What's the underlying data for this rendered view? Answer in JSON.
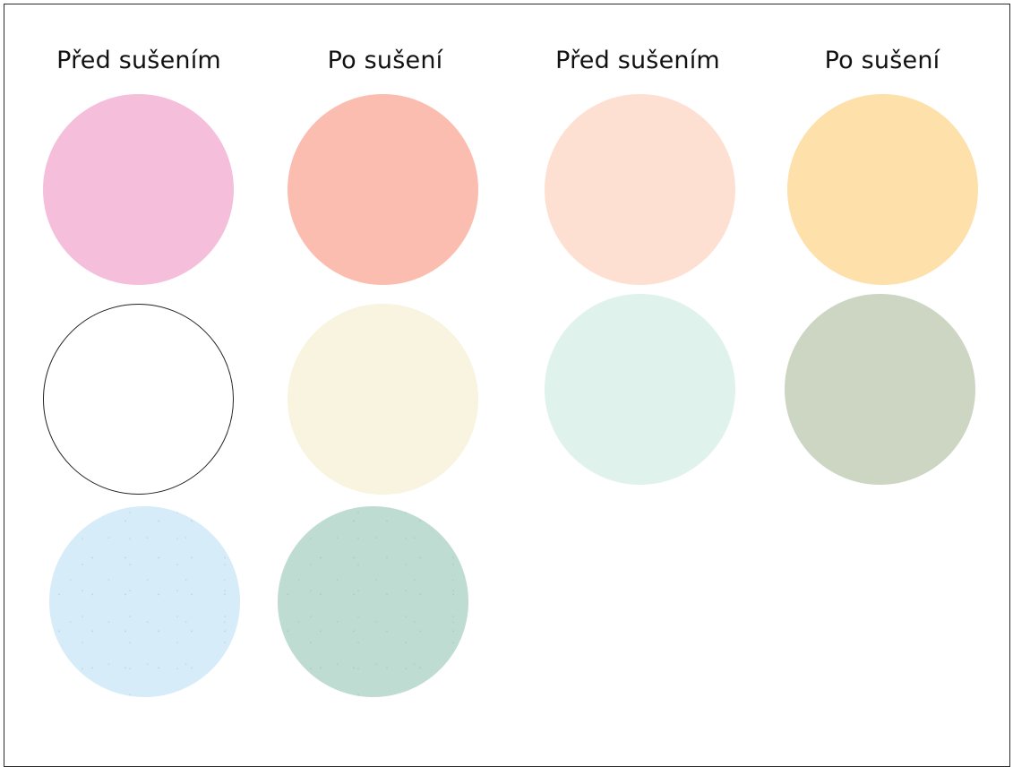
{
  "headers": [
    {
      "label": "Před sušením"
    },
    {
      "label": "Po sušení"
    },
    {
      "label": "Před sušením"
    },
    {
      "label": "Po sušení"
    }
  ],
  "swatches": [
    {
      "name": "pink-before",
      "color": "#f5bfdc"
    },
    {
      "name": "pink-after",
      "color": "#fbbdb0"
    },
    {
      "name": "peach-before",
      "color": "#fee0d3"
    },
    {
      "name": "peach-after",
      "color": "#fde0aa"
    },
    {
      "name": "white-before",
      "color": "#ffffff",
      "outlined": true
    },
    {
      "name": "cream-after",
      "color": "#f8f4df"
    },
    {
      "name": "mint-before",
      "color": "#e0f2ec"
    },
    {
      "name": "sage-after",
      "color": "#ccd6c3"
    },
    {
      "name": "lightblue-before",
      "color": "#d6ecf8"
    },
    {
      "name": "seagreen-after",
      "color": "#bfdcd3"
    }
  ]
}
